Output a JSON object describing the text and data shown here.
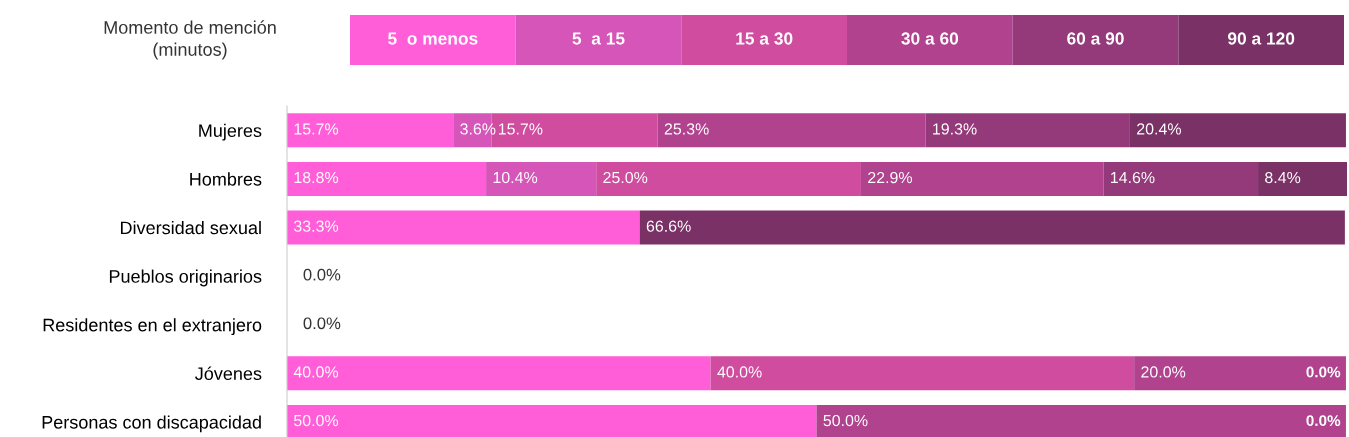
{
  "chart_data": {
    "type": "bar",
    "orientation": "horizontal",
    "stacked": true,
    "legend": "top",
    "legend_title": "Momento de mención\n(minutos)",
    "grid": false,
    "tick_labels": "y",
    "xlim": [
      0,
      100.1
    ],
    "categories": [
      "Mujeres",
      "Hombres",
      "Diversidad sexual",
      "Pueblos originarios",
      "Residentes en el extranjero",
      "Jóvenes",
      "Personas con discapacidad"
    ],
    "series": [
      {
        "name": "5  o menos",
        "color": "#ff5ed8",
        "values": [
          15.7,
          18.8,
          33.3,
          0,
          0,
          40.0,
          50.0
        ],
        "value_labels": [
          "15.7%",
          "18.8%",
          "33.3%",
          "0.0%",
          "0.0%",
          "40.0%",
          "50.0%"
        ]
      },
      {
        "name": "5  a 15",
        "color": "#d655b8",
        "values": [
          3.6,
          10.4,
          0,
          0,
          0,
          0,
          0
        ],
        "value_labels": [
          "3.6%",
          "10.4%",
          null,
          null,
          null,
          null,
          null
        ]
      },
      {
        "name": "15 a 30",
        "color": "#cf4c9f",
        "values": [
          15.7,
          25.0,
          0,
          0,
          0,
          40.0,
          0
        ],
        "value_labels": [
          "15.7%",
          "25.0%",
          null,
          null,
          null,
          "40.0%",
          null
        ]
      },
      {
        "name": "30 a 60",
        "color": "#b0428e",
        "values": [
          25.3,
          22.9,
          0,
          0,
          0,
          20.0,
          50.0
        ],
        "value_labels": [
          "25.3%",
          "22.9%",
          null,
          null,
          null,
          "20.0%",
          "50.0%"
        ]
      },
      {
        "name": "60 a 90",
        "color": "#943a7a",
        "values": [
          19.3,
          14.6,
          0,
          0,
          0,
          0,
          0
        ],
        "value_labels": [
          "19.3%",
          "14.6%",
          null,
          null,
          null,
          null,
          null
        ]
      },
      {
        "name": "90 a 120",
        "color": "#7a3166",
        "values": [
          20.4,
          8.4,
          66.6,
          0,
          0,
          0,
          0
        ],
        "value_labels": [
          "20.4%",
          "8.4%",
          "66.6%",
          null,
          null,
          "0.0%",
          "0.0%"
        ]
      }
    ]
  }
}
